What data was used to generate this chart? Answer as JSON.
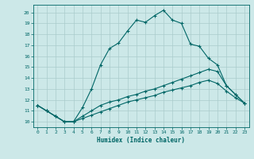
{
  "xlabel": "Humidex (Indice chaleur)",
  "bg_color": "#cce8e8",
  "grid_color": "#aacccc",
  "line_color": "#006666",
  "xlim": [
    -0.5,
    23.5
  ],
  "ylim": [
    9.5,
    20.7
  ],
  "xticks": [
    0,
    1,
    2,
    3,
    4,
    5,
    6,
    7,
    8,
    9,
    10,
    11,
    12,
    13,
    14,
    15,
    16,
    17,
    18,
    19,
    20,
    21,
    22,
    23
  ],
  "yticks": [
    10,
    11,
    12,
    13,
    14,
    15,
    16,
    17,
    18,
    19,
    20
  ],
  "line1_x": [
    0,
    1,
    2,
    3,
    4,
    5,
    6,
    7,
    8,
    9,
    10,
    11,
    12,
    13,
    14,
    15,
    16,
    17,
    18,
    19,
    20,
    21,
    22,
    23
  ],
  "line1_y": [
    11.5,
    11.0,
    10.5,
    10.0,
    10.0,
    11.3,
    13.0,
    15.2,
    16.7,
    17.2,
    18.3,
    19.3,
    19.1,
    19.7,
    20.2,
    19.3,
    19.0,
    17.1,
    16.9,
    15.8,
    15.2,
    13.3,
    12.5,
    11.7
  ],
  "line2_x": [
    0,
    1,
    2,
    3,
    4,
    5,
    6,
    7,
    8,
    9,
    10,
    11,
    12,
    13,
    14,
    15,
    16,
    17,
    18,
    19,
    20,
    21,
    22,
    23
  ],
  "line2_y": [
    11.5,
    11.0,
    10.5,
    10.0,
    10.0,
    10.5,
    11.0,
    11.5,
    11.8,
    12.0,
    12.3,
    12.5,
    12.8,
    13.0,
    13.3,
    13.6,
    13.9,
    14.2,
    14.5,
    14.8,
    14.6,
    13.3,
    12.5,
    11.7
  ],
  "line3_x": [
    0,
    1,
    2,
    3,
    4,
    5,
    6,
    7,
    8,
    9,
    10,
    11,
    12,
    13,
    14,
    15,
    16,
    17,
    18,
    19,
    20,
    21,
    22,
    23
  ],
  "line3_y": [
    11.5,
    11.0,
    10.5,
    10.0,
    10.0,
    10.3,
    10.6,
    10.9,
    11.2,
    11.5,
    11.8,
    12.0,
    12.2,
    12.4,
    12.7,
    12.9,
    13.1,
    13.3,
    13.6,
    13.8,
    13.5,
    12.8,
    12.2,
    11.7
  ]
}
